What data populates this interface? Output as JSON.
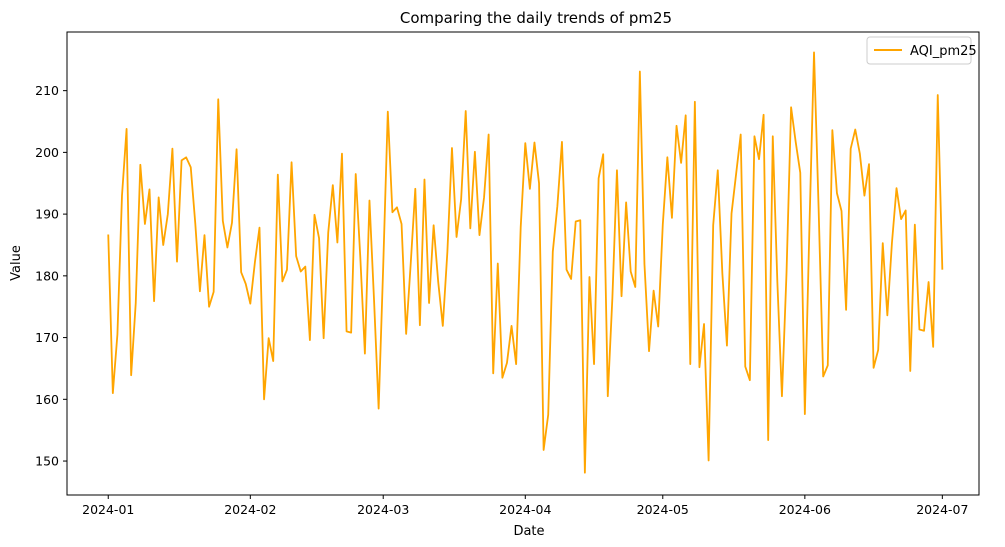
{
  "chart_data": {
    "type": "line",
    "title": "Comparing the daily trends of pm25",
    "xlabel": "Date",
    "ylabel": "Value",
    "x_start": "2024-01-01",
    "x_end": "2024-07-01",
    "xlim": [
      "2023-12-23",
      "2024-07-09"
    ],
    "ylim": [
      144.5,
      219.5
    ],
    "x_ticks": [
      {
        "label": "2024-01",
        "date": "2024-01-01"
      },
      {
        "label": "2024-02",
        "date": "2024-02-01"
      },
      {
        "label": "2024-03",
        "date": "2024-03-01"
      },
      {
        "label": "2024-04",
        "date": "2024-04-01"
      },
      {
        "label": "2024-05",
        "date": "2024-05-01"
      },
      {
        "label": "2024-06",
        "date": "2024-06-01"
      },
      {
        "label": "2024-07",
        "date": "2024-07-01"
      }
    ],
    "y_ticks": [
      150,
      160,
      170,
      180,
      190,
      200,
      210
    ],
    "grid": false,
    "legend_position": "top-right",
    "series": [
      {
        "name": "AQI_pm25",
        "color": "#FFA500",
        "values": [
          186.7,
          161.0,
          170.5,
          193.0,
          203.8,
          163.9,
          175.6,
          198.0,
          188.4,
          194.0,
          175.9,
          192.7,
          185.0,
          190.0,
          200.6,
          182.3,
          198.7,
          199.2,
          197.6,
          188.4,
          177.5,
          186.6,
          175.0,
          177.4,
          208.6,
          188.9,
          184.6,
          188.6,
          200.5,
          180.6,
          178.7,
          175.5,
          182.2,
          187.8,
          160.0,
          169.9,
          166.2,
          196.4,
          179.1,
          181.0,
          198.4,
          183.2,
          180.7,
          181.5,
          169.6,
          189.9,
          186.1,
          169.9,
          187.0,
          194.7,
          185.4,
          199.8,
          171.0,
          170.8,
          196.5,
          183.0,
          167.4,
          192.2,
          176.0,
          158.5,
          181.6,
          206.6,
          190.3,
          191.1,
          188.4,
          170.6,
          182.0,
          194.1,
          172.0,
          195.6,
          175.6,
          188.2,
          179.0,
          171.9,
          183.9,
          200.7,
          186.3,
          192.4,
          206.7,
          187.7,
          200.1,
          186.6,
          192.7,
          202.9,
          164.2,
          182.0,
          163.5,
          165.9,
          171.9,
          165.7,
          187.9,
          201.5,
          194.1,
          201.6,
          195.0,
          151.8,
          157.5,
          183.9,
          191.3,
          201.7,
          181.0,
          179.5,
          188.8,
          189.0,
          148.1,
          179.8,
          165.7,
          195.8,
          199.7,
          160.5,
          176.4,
          197.1,
          176.7,
          191.9,
          180.7,
          178.2,
          213.1,
          181.9,
          167.8,
          177.6,
          171.8,
          188.3,
          199.2,
          189.4,
          204.3,
          198.3,
          206.0,
          165.7,
          208.2,
          165.2,
          172.2,
          150.1,
          188.2,
          197.1,
          180.4,
          168.7,
          190.1,
          196.5,
          202.9,
          165.3,
          163.1,
          202.6,
          198.9,
          206.1,
          153.4,
          202.6,
          179.0,
          160.5,
          180.5,
          207.3,
          201.7,
          196.7,
          157.6,
          187.9,
          216.2,
          191.0,
          163.7,
          165.5,
          203.6,
          193.4,
          190.5,
          174.5,
          200.6,
          203.7,
          199.8,
          193.0,
          198.1,
          165.1,
          168.0,
          185.3,
          173.6,
          185.3,
          194.2,
          189.2,
          190.6,
          164.6,
          188.3,
          171.3,
          171.1,
          179.0,
          168.5,
          209.3,
          181.0
        ]
      }
    ]
  }
}
